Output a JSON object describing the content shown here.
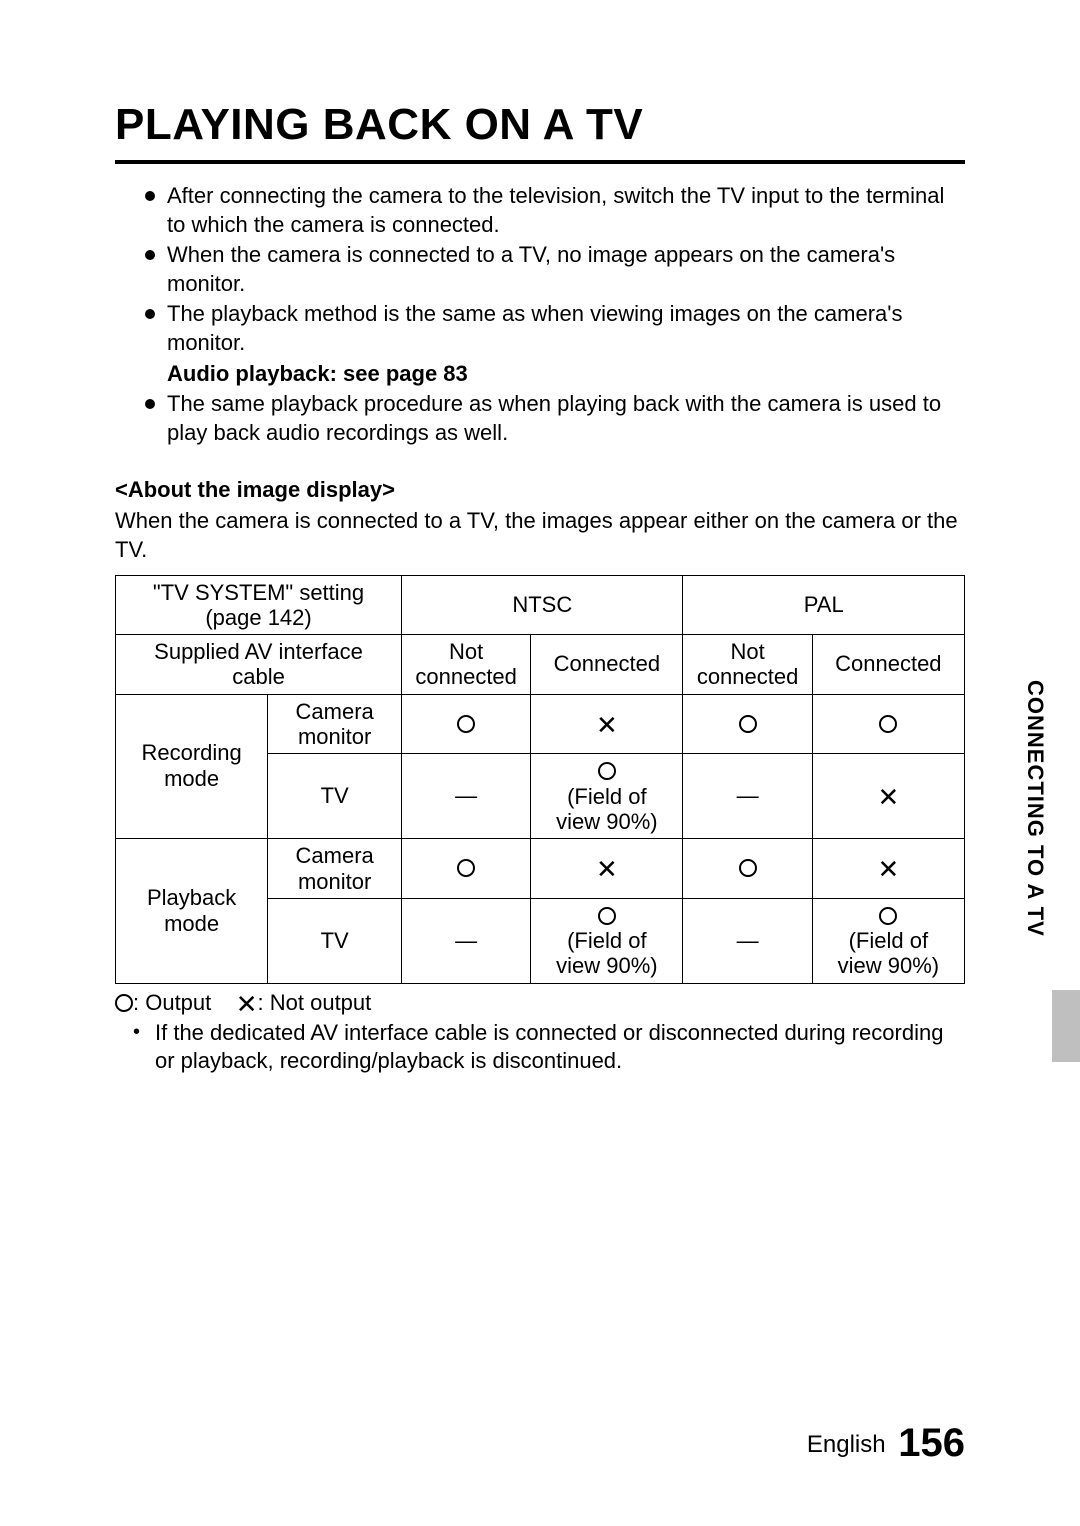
{
  "title": "PLAYING BACK ON A TV",
  "bullets": {
    "b1": "After connecting the camera to the television, switch the TV input to the terminal to which the camera is connected.",
    "b2": "When the camera is connected to a TV, no image appears on the camera's monitor.",
    "b3": "The playback method is the same as when viewing images on the camera's monitor.",
    "bold": "Audio playback: see page 83",
    "b4": "The same playback procedure as when playing back with the camera is used to play back audio recordings as well."
  },
  "sub": {
    "heading": "<About the image display>",
    "text": "When the camera is connected to a TV, the images appear either on the camera or the TV."
  },
  "table": {
    "h_tv_system_l1": "\"TV SYSTEM\" setting",
    "h_tv_system_l2": "(page 142)",
    "h_ntsc": "NTSC",
    "h_pal": "PAL",
    "h_av_l1": "Supplied AV interface",
    "h_av_l2": "cable",
    "h_notconn_l1": "Not",
    "h_notconn_l2": "connected",
    "h_conn": "Connected",
    "r_rec": "Recording mode",
    "r_play": "Playback mode",
    "r_cammon_l1": "Camera",
    "r_cammon_l2": "monitor",
    "r_tv": "TV",
    "dash": "—",
    "fov_l1": "(Field of",
    "fov_l2": "view 90%)"
  },
  "legend": {
    "output": ": Output",
    "notoutput": ": Not output"
  },
  "note": "If the dedicated AV interface cable is connected or disconnected during recording or playback, recording/playback is discontinued.",
  "side": "CONNECTING TO A TV",
  "footer": {
    "lang": "English",
    "page": "156"
  }
}
